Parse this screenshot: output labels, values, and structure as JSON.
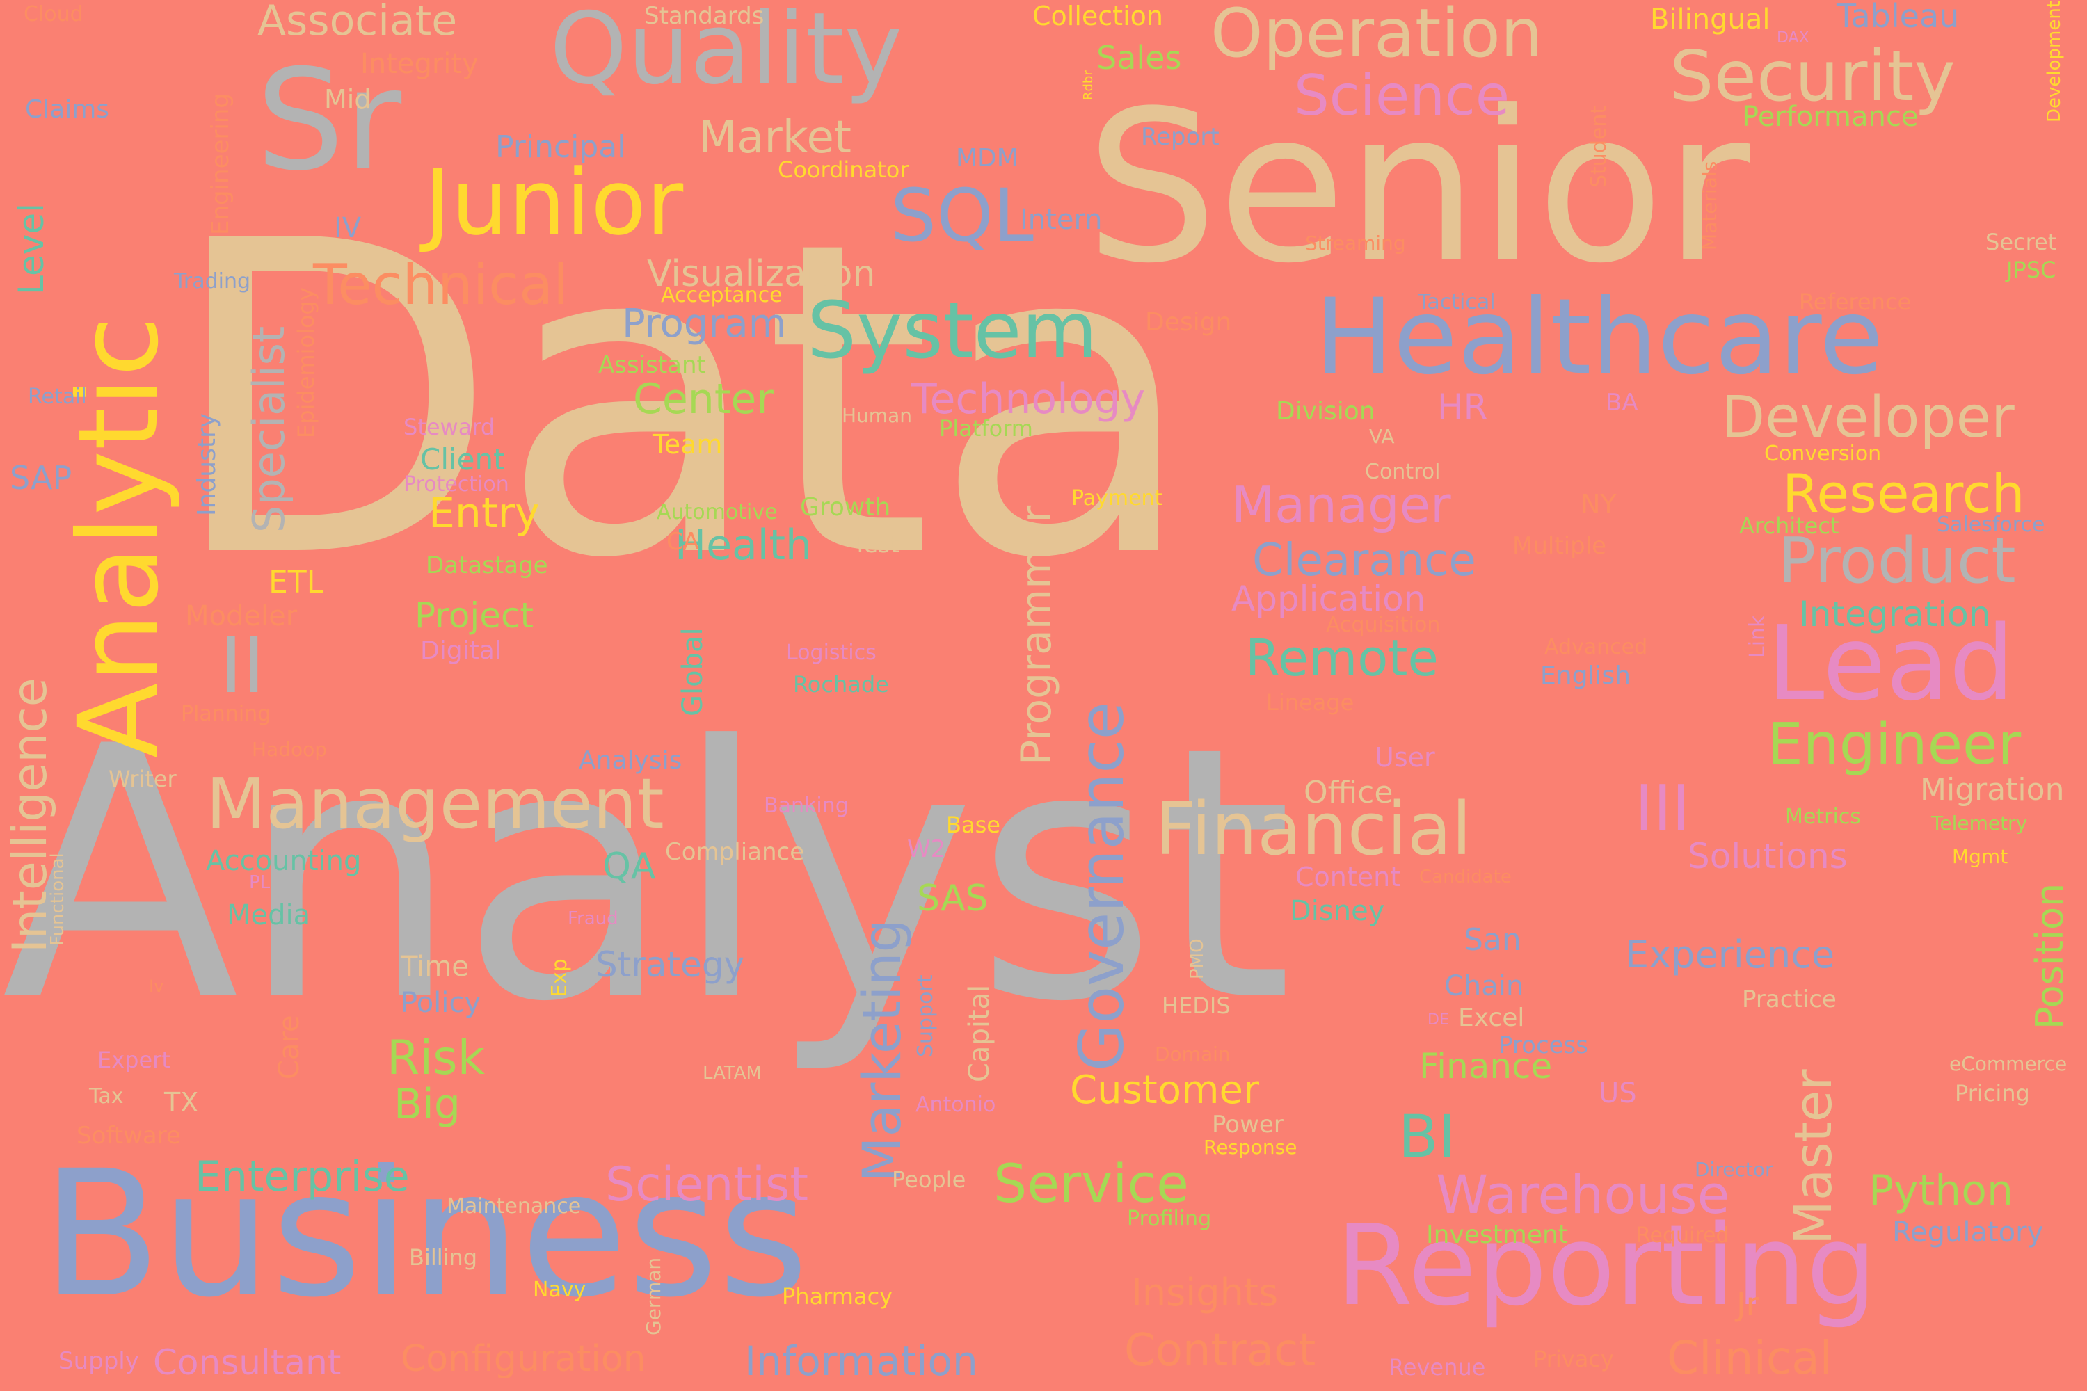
{
  "palette": {
    "background": "#fa8072",
    "gray": "#b3b3b3",
    "tan": "#e5c494",
    "blue": "#8da0cb",
    "yellow": "#ffd92f",
    "pink": "#e78ac3",
    "green": "#a6d854",
    "teal": "#66c2a5",
    "orange": "#fc8d62"
  },
  "words": [
    "Data",
    "Analyst",
    "Business",
    "Senior",
    "Reporting",
    "Healthcare",
    "Analytic",
    "Quality",
    "Sr",
    "Junior",
    "Security",
    "Operation",
    "Science",
    "Technical",
    "System",
    "SQL",
    "Developer",
    "Product",
    "Lead",
    "Research",
    "Engineer",
    "Financial",
    "Management",
    "Governance",
    "Marketing",
    "Warehouse",
    "Service",
    "Scientist",
    "Enterprise",
    "Intelligence",
    "Specialist",
    "Programmer",
    "Master",
    "III",
    "II",
    "BI",
    "Remote",
    "Manager",
    "Clearance",
    "Application",
    "Technology",
    "Center",
    "Program",
    "Visualization",
    "Market",
    "Associate",
    "Entry",
    "Health",
    "Project",
    "Risk",
    "Big",
    "Customer",
    "Python",
    "Experience",
    "Position",
    "Information",
    "Consultant",
    "Clinical",
    "Contract",
    "Insights",
    "Configuration",
    "Strategy",
    "Solutions",
    "Integration",
    "Migration",
    "Office",
    "Finance",
    "Capital",
    "Care",
    "Level",
    "Industry",
    "Tableau",
    "Standards",
    "Collection",
    "Bilingual",
    "Sales",
    "Performance",
    "Principal",
    "Coordinator",
    "Report",
    "Intern",
    "MDM",
    "Mid",
    "IV",
    "Claims",
    "Integrity",
    "Engineering",
    "Cloud",
    "Trading",
    "Acceptance",
    "Design",
    "Assistant",
    "Retail",
    "Epidemiology",
    "Steward",
    "Client",
    "Protection",
    "Automotive",
    "Growth",
    "Payment",
    "Control",
    "Conversion",
    "Architect",
    "Salesforce",
    "Datastage",
    "Test",
    "Multiple",
    "Acquisition",
    "Advanced",
    "English",
    "Lineage",
    "Digital",
    "Logistics",
    "Rochade",
    "Modeler",
    "Planning",
    "Hadoop",
    "Writer",
    "Analysis",
    "Banking",
    "Base",
    "Compliance",
    "W2",
    "Accounting",
    "QA",
    "SAS",
    "Metrics",
    "Telemetry",
    "Mgmt",
    "Content",
    "Candidate",
    "Media",
    "PL",
    "Fraud",
    "Disney",
    "Functional",
    "Exp",
    "Time",
    "Policy",
    "Support",
    "HEDIS",
    "PMO",
    "Chain",
    "Excel",
    "Process",
    "Practice",
    "eCommerce",
    "Pricing",
    "Expert",
    "Tax",
    "TX",
    "LATAM",
    "Antonio",
    "Domain",
    "Power",
    "Response",
    "US",
    "Software",
    "People",
    "Director",
    "Maintenance",
    "Profiling",
    "Investment",
    "Required",
    "Regulatory",
    "Billing",
    "Navy",
    "German",
    "Pharmacy",
    "Jr",
    "Supply",
    "Revenue",
    "Privacy",
    "Global",
    "Link",
    "Student",
    "Materials",
    "Streaming",
    "Tactical",
    "Reference",
    "Secret",
    "JPSC",
    "Platform",
    "Human",
    "Division",
    "HR",
    "BA",
    "VA",
    "NY",
    "CA",
    "ETL",
    "SAP",
    "Team",
    "User",
    "San",
    "DE",
    "DAX",
    "Development",
    "Rdbr",
    "Iv"
  ]
}
